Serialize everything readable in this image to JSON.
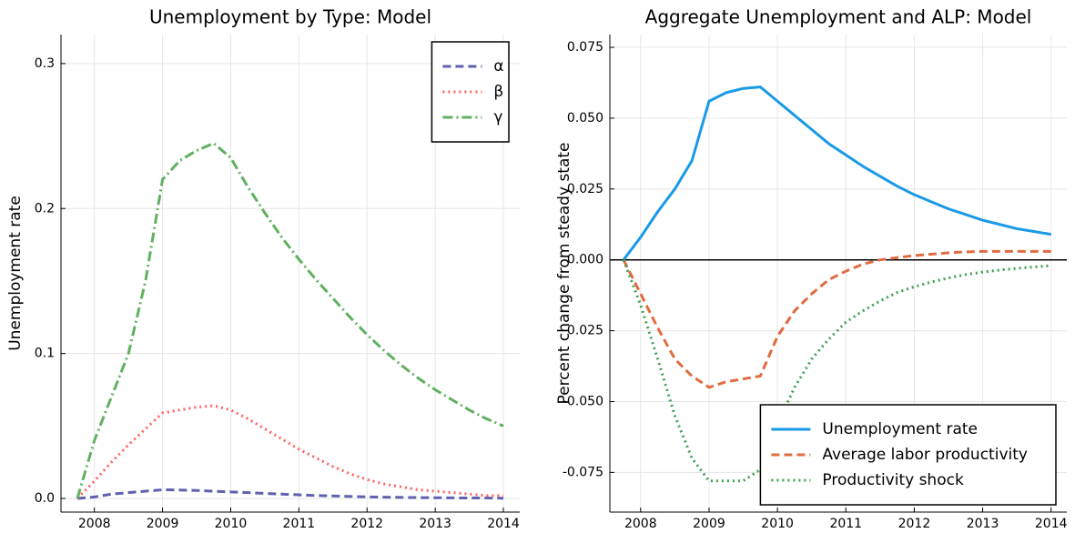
{
  "chart_data": [
    {
      "type": "line",
      "title": "Unemployment by Type: Model",
      "ylabel": "Unemployment rate",
      "x": [
        2007.75,
        2008,
        2008.25,
        2008.5,
        2008.75,
        2009,
        2009.25,
        2009.5,
        2009.75,
        2010,
        2010.25,
        2010.5,
        2010.75,
        2011,
        2011.25,
        2011.5,
        2011.75,
        2012,
        2012.25,
        2012.5,
        2012.75,
        2013,
        2013.25,
        2013.5,
        2013.75,
        2014
      ],
      "series": [
        {
          "name": "α",
          "color": "#6060b0",
          "style": "dash",
          "values": [
            0,
            0.001,
            0.003,
            0.004,
            0.005,
            0.006,
            0.0058,
            0.0055,
            0.005,
            0.0045,
            0.004,
            0.0035,
            0.003,
            0.0025,
            0.002,
            0.0017,
            0.0014,
            0.0011,
            0.0009,
            0.0007,
            0.0006,
            0.0005,
            0.0004,
            0.0003,
            0.0003,
            0.0002
          ]
        },
        {
          "name": "β",
          "color": "#ff6060",
          "style": "dot",
          "values": [
            0,
            0.012,
            0.025,
            0.037,
            0.048,
            0.059,
            0.061,
            0.063,
            0.064,
            0.061,
            0.055,
            0.048,
            0.041,
            0.034,
            0.028,
            0.022,
            0.017,
            0.013,
            0.01,
            0.008,
            0.006,
            0.005,
            0.004,
            0.003,
            0.002,
            0.002
          ]
        },
        {
          "name": "γ",
          "color": "#60b060",
          "style": "dashdot",
          "values": [
            0,
            0.04,
            0.07,
            0.1,
            0.15,
            0.22,
            0.233,
            0.24,
            0.245,
            0.235,
            0.215,
            0.197,
            0.18,
            0.165,
            0.151,
            0.138,
            0.125,
            0.113,
            0.102,
            0.092,
            0.083,
            0.075,
            0.068,
            0.061,
            0.055,
            0.05
          ]
        }
      ],
      "xlim": [
        2007.51,
        2014.24
      ],
      "xticks": [
        2008,
        2009,
        2010,
        2011,
        2012,
        2013,
        2014
      ],
      "ylim": [
        -0.0094,
        0.32
      ],
      "yticks": [
        {
          "value": 0,
          "label": "0.0"
        },
        0.1,
        0.2,
        0.3
      ],
      "grid": true,
      "legend": "top-right"
    },
    {
      "type": "line",
      "title": "Aggregate Unemployment and ALP: Model",
      "ylabel": "Percent change from steady state",
      "x": [
        2007.75,
        2008,
        2008.25,
        2008.5,
        2008.75,
        2009,
        2009.25,
        2009.5,
        2009.75,
        2010,
        2010.25,
        2010.5,
        2010.75,
        2011,
        2011.25,
        2011.5,
        2011.75,
        2012,
        2012.25,
        2012.5,
        2012.75,
        2013,
        2013.25,
        2013.5,
        2013.75,
        2014
      ],
      "series": [
        {
          "name": "Unemployment rate",
          "color": "#1a9ae6",
          "style": "solid",
          "values": [
            0,
            0.008,
            0.017,
            0.025,
            0.035,
            0.056,
            0.059,
            0.0605,
            0.061,
            0.056,
            0.051,
            0.046,
            0.041,
            0.037,
            0.033,
            0.0295,
            0.026,
            0.023,
            0.0205,
            0.018,
            0.016,
            0.014,
            0.0125,
            0.011,
            0.01,
            0.009
          ]
        },
        {
          "name": "Average labor productivity",
          "color": "#e06c40",
          "style": "dash",
          "values": [
            0,
            -0.012,
            -0.024,
            -0.035,
            -0.041,
            -0.045,
            -0.043,
            -0.042,
            -0.041,
            -0.027,
            -0.018,
            -0.012,
            -0.007,
            -0.004,
            -0.0015,
            0,
            0.0008,
            0.0015,
            0.002,
            0.0025,
            0.0028,
            0.003,
            0.003,
            0.003,
            0.003,
            0.003
          ]
        },
        {
          "name": "Productivity shock",
          "color": "#3ca050",
          "style": "dot",
          "values": [
            0,
            -0.016,
            -0.035,
            -0.055,
            -0.07,
            -0.078,
            -0.078,
            -0.078,
            -0.074,
            -0.058,
            -0.045,
            -0.035,
            -0.028,
            -0.022,
            -0.018,
            -0.0145,
            -0.0115,
            -0.0095,
            -0.0078,
            -0.0064,
            -0.0052,
            -0.0043,
            -0.0036,
            -0.003,
            -0.0025,
            -0.002
          ]
        }
      ],
      "xlim": [
        2007.55,
        2014.23
      ],
      "xticks": [
        2008,
        2009,
        2010,
        2011,
        2012,
        2013,
        2014
      ],
      "ylim": [
        -0.089,
        0.0795
      ],
      "yticks": [
        -0.075,
        {
          "value": -0.05,
          "label": "-0.050"
        },
        -0.025,
        {
          "value": 0,
          "label": "0.000"
        },
        0.025,
        {
          "value": 0.05,
          "label": "0.050"
        },
        0.075
      ],
      "hline": 0,
      "grid": true,
      "legend": "bottom-right"
    }
  ]
}
